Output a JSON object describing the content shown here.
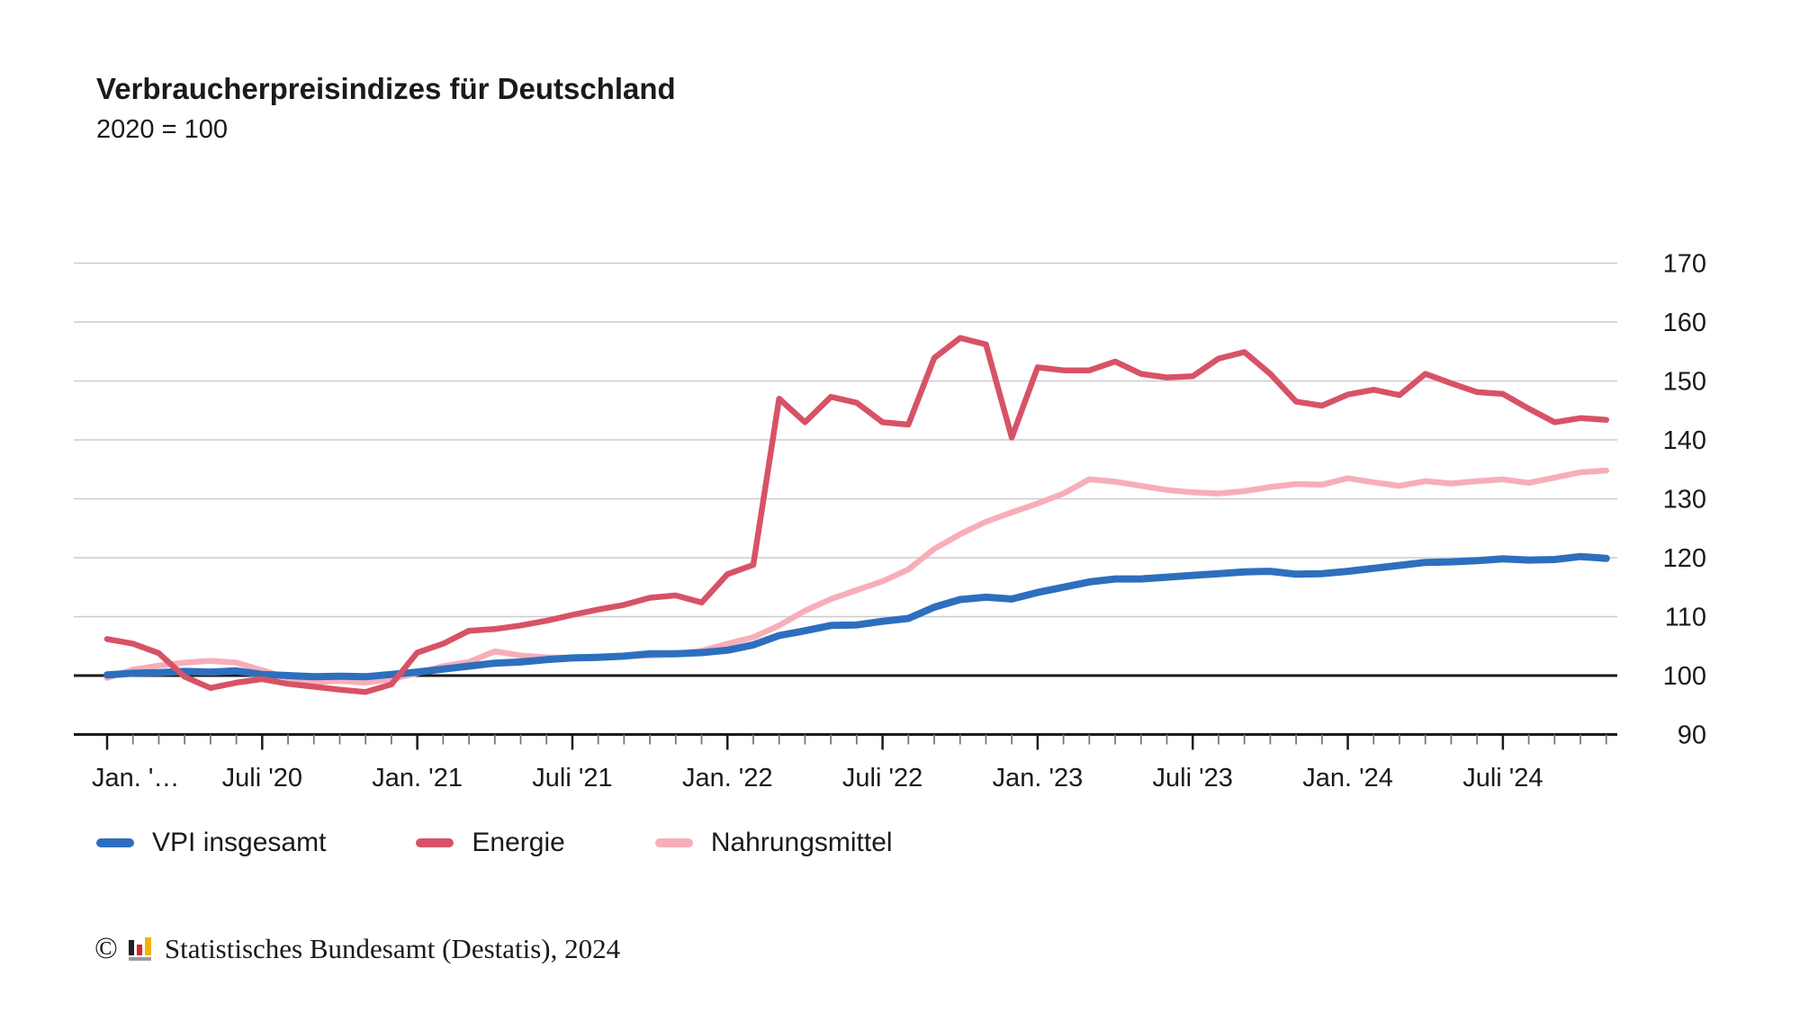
{
  "chart_data": {
    "type": "line",
    "title": "Verbraucherpreisindizes für Deutschland",
    "subtitle": "2020 = 100",
    "x_unit": "Monat",
    "x_start": "Januar 2020",
    "x_end": "November 2024",
    "x_tick_labels": [
      "Jan. '…",
      "Juli '20",
      "Jan. '21",
      "Juli '21",
      "Jan. '22",
      "Juli '22",
      "Jan. '23",
      "Juli '23",
      "Jan. '24",
      "Juli '24"
    ],
    "y_ticks": [
      90,
      100,
      110,
      120,
      130,
      140,
      150,
      160,
      170
    ],
    "ylim": [
      90,
      170
    ],
    "baseline_value": 100,
    "grid": true,
    "legend_position": "bottom-left",
    "colors": {
      "grid": "#cccccc",
      "baseline": "#1a1a1a",
      "axis": "#1a1a1a",
      "text": "#1a1a1a"
    },
    "series": [
      {
        "name": "VPI insgesamt",
        "color": "#2d6fbe",
        "stroke_width": 8,
        "z": 2,
        "values": [
          100.1,
          100.4,
          100.5,
          100.7,
          100.6,
          100.8,
          100.2,
          100.0,
          99.8,
          99.9,
          99.8,
          100.2,
          100.6,
          101.1,
          101.6,
          102.1,
          102.3,
          102.7,
          103.0,
          103.1,
          103.3,
          103.7,
          103.7,
          103.9,
          104.3,
          105.2,
          106.8,
          107.6,
          108.5,
          108.6,
          109.2,
          109.7,
          111.6,
          112.9,
          113.3,
          113.0,
          114.1,
          115.0,
          115.9,
          116.4,
          116.4,
          116.7,
          117.0,
          117.3,
          117.6,
          117.7,
          117.2,
          117.3,
          117.7,
          118.2,
          118.7,
          119.2,
          119.3,
          119.5,
          119.8,
          119.6,
          119.7,
          120.2,
          119.9
        ]
      },
      {
        "name": "Energie",
        "color": "#d85266",
        "stroke_width": 6.5,
        "z": 3,
        "values": [
          106.2,
          105.4,
          103.8,
          99.8,
          97.9,
          98.8,
          99.4,
          98.6,
          98.1,
          97.6,
          97.2,
          98.5,
          103.9,
          105.4,
          107.6,
          107.9,
          108.5,
          109.3,
          110.3,
          111.2,
          112.0,
          113.2,
          113.6,
          112.4,
          117.2,
          118.8,
          147.0,
          143.0,
          147.3,
          146.3,
          143.0,
          142.6,
          153.9,
          157.3,
          156.2,
          140.4,
          152.3,
          151.8,
          151.8,
          153.3,
          151.2,
          150.6,
          150.8,
          153.8,
          154.9,
          151.2,
          146.5,
          145.8,
          147.7,
          148.5,
          147.6,
          151.2,
          149.6,
          148.1,
          147.8,
          145.3,
          143.0,
          143.7,
          143.4
        ]
      },
      {
        "name": "Nahrungsmittel",
        "color": "#f7aeb9",
        "stroke_width": 6.5,
        "z": 1,
        "values": [
          99.6,
          101.0,
          101.7,
          102.2,
          102.5,
          102.2,
          100.9,
          99.6,
          98.9,
          99.1,
          98.8,
          99.4,
          100.4,
          101.6,
          102.3,
          104.1,
          103.4,
          103.1,
          103.0,
          103.2,
          103.3,
          103.4,
          103.6,
          104.2,
          105.4,
          106.5,
          108.5,
          111.0,
          113.0,
          114.5,
          116.0,
          118.0,
          121.5,
          124.0,
          126.1,
          127.7,
          129.2,
          130.9,
          133.3,
          132.9,
          132.2,
          131.5,
          131.1,
          130.9,
          131.3,
          132.0,
          132.5,
          132.4,
          133.5,
          132.8,
          132.2,
          133.0,
          132.6,
          133.0,
          133.3,
          132.7,
          133.6,
          134.5,
          134.8
        ]
      }
    ]
  },
  "footer": {
    "copyright": "©",
    "logo": "destatis-bars-icon",
    "source": "Statistisches Bundesamt (Destatis), 2024"
  }
}
